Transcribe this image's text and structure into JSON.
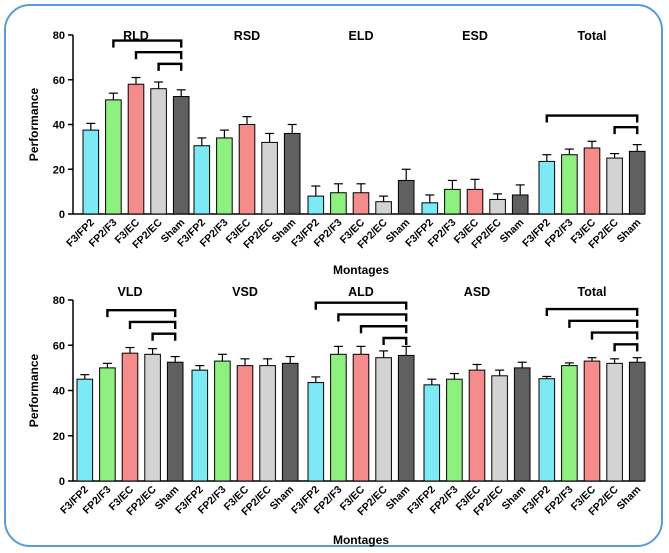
{
  "colors": {
    "F3/FP2": "#7de9f5",
    "FP2/F3": "#8ef07e",
    "F3/EC": "#f58c8c",
    "FP2/EC": "#d3d3d3",
    "Sham": "#606060",
    "frame": "#5a9bd5"
  },
  "chart_data": [
    {
      "type": "bar",
      "panel": "top",
      "ylabel": "Performance",
      "xlabel": "Montages",
      "ylim": [
        0,
        80
      ],
      "yticks": [
        0,
        20,
        40,
        60,
        80
      ],
      "categories": [
        "F3/FP2",
        "FP2/F3",
        "F3/EC",
        "FP2/EC",
        "Sham"
      ],
      "groups": [
        {
          "name": "RLD",
          "values": [
            37.5,
            51,
            58,
            56,
            52.5
          ],
          "errors": [
            3,
            3,
            3,
            3,
            3
          ],
          "brackets": [
            [
              "FP2/F3",
              "Sham"
            ],
            [
              "F3/EC",
              "Sham"
            ],
            [
              "FP2/EC",
              "Sham"
            ]
          ]
        },
        {
          "name": "RSD",
          "values": [
            30.5,
            34,
            40,
            32,
            36
          ],
          "errors": [
            3.5,
            3.5,
            3.5,
            4,
            4
          ],
          "brackets": []
        },
        {
          "name": "ELD",
          "values": [
            8,
            9.5,
            9.5,
            5.5,
            15
          ],
          "errors": [
            4.5,
            4,
            4,
            2.5,
            5
          ],
          "brackets": []
        },
        {
          "name": "ESD",
          "values": [
            5,
            11,
            11,
            6.5,
            8.5
          ],
          "errors": [
            3.5,
            4,
            4.5,
            2.5,
            4.5
          ],
          "brackets": []
        },
        {
          "name": "Total",
          "values": [
            23.5,
            26.5,
            29.5,
            25,
            28
          ],
          "errors": [
            3,
            2.5,
            3,
            2,
            3
          ],
          "brackets": [
            [
              "F3/FP2",
              "Sham"
            ],
            [
              "FP2/EC",
              "Sham"
            ]
          ]
        }
      ]
    },
    {
      "type": "bar",
      "panel": "bottom",
      "ylabel": "Performance",
      "xlabel": "Montages",
      "ylim": [
        0,
        80
      ],
      "yticks": [
        0,
        20,
        40,
        60,
        80
      ],
      "categories": [
        "F3/FP2",
        "FP2/F3",
        "F3/EC",
        "FP2/EC",
        "Sham"
      ],
      "groups": [
        {
          "name": "VLD",
          "values": [
            45,
            50,
            56.5,
            56,
            52.5
          ],
          "errors": [
            2,
            2,
            2.5,
            2.5,
            2.5
          ],
          "brackets": [
            [
              "FP2/F3",
              "Sham"
            ],
            [
              "F3/EC",
              "Sham"
            ],
            [
              "FP2/EC",
              "Sham"
            ]
          ]
        },
        {
          "name": "VSD",
          "values": [
            49,
            53,
            51,
            51,
            52
          ],
          "errors": [
            2,
            3,
            3,
            3,
            3
          ],
          "brackets": []
        },
        {
          "name": "ALD",
          "values": [
            43.5,
            56,
            56,
            54.5,
            55.5
          ],
          "errors": [
            2.5,
            3.5,
            3.5,
            3,
            4
          ],
          "brackets": [
            [
              "F3/FP2",
              "Sham"
            ],
            [
              "FP2/F3",
              "Sham"
            ],
            [
              "F3/EC",
              "Sham"
            ],
            [
              "FP2/EC",
              "Sham"
            ]
          ]
        },
        {
          "name": "ASD",
          "values": [
            42.5,
            45,
            49,
            46.5,
            50
          ],
          "errors": [
            2.5,
            2.5,
            2.5,
            2.5,
            2.5
          ],
          "brackets": []
        },
        {
          "name": "Total",
          "values": [
            45.2,
            51,
            53,
            52,
            52.5
          ],
          "errors": [
            1,
            1.2,
            1.5,
            2,
            2
          ],
          "brackets": [
            [
              "F3/FP2",
              "Sham"
            ],
            [
              "FP2/F3",
              "Sham"
            ],
            [
              "F3/EC",
              "Sham"
            ],
            [
              "FP2/EC",
              "Sham"
            ]
          ]
        }
      ]
    }
  ]
}
